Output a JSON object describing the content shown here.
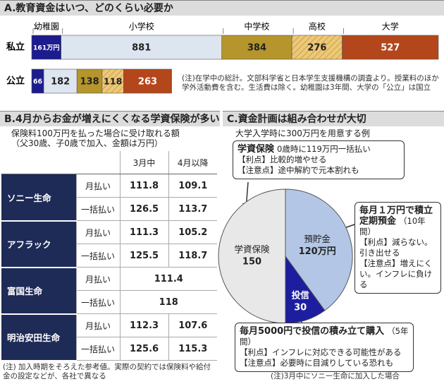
{
  "chart_data": [
    {
      "type": "stacked-bar-h",
      "title": "A.教育資金はいつ、どのくらい必要か",
      "categories": [
        "私立",
        "公立"
      ],
      "series": [
        {
          "name": "幼稚園",
          "color": "#1c1c8e",
          "values": [
            161,
            66
          ],
          "value_labels": [
            "161万円",
            "66"
          ]
        },
        {
          "name": "小学校",
          "color": "#dde5f0",
          "values": [
            881,
            182
          ]
        },
        {
          "name": "中学校",
          "color": "#b5952c",
          "values": [
            384,
            138
          ]
        },
        {
          "name": "高校",
          "color": "#ecc879",
          "pattern": "hatch",
          "values": [
            276,
            118
          ]
        },
        {
          "name": "大学",
          "color": "#b4461c",
          "values": [
            527,
            263
          ]
        }
      ],
      "note": "(注)在学中の総計。文部科学省と日本学生支援機構の調査より。授業料のほか学外活動費を含む。生活費は除く。幼稚園は3年間、大学の「公立」は国立"
    },
    {
      "type": "pie",
      "title": "C.資金計画は組み合わせが大切",
      "subtitle": "大学入学時に300万円を用意する例",
      "categories": [
        "預貯金",
        "投信",
        "学資保険"
      ],
      "values": [
        120,
        30,
        150
      ],
      "value_labels": [
        "120万円",
        "30",
        "150"
      ],
      "colors": [
        "#b3c6e6",
        "#1d1da0",
        "#e8e8e8"
      ],
      "annotations": [
        {
          "heading": "学資保険",
          "detail": "0歳時に119万円一括払い",
          "lines": [
            "【利点】比較的増やせる",
            "【注意点】途中解約で元本割れも"
          ]
        },
        {
          "heading": "毎月１万円で積立定期預金",
          "detail": "（10年間）",
          "lines": [
            "【利点】減らない。引き出せる",
            "【注意点】増えにくい。インフレに負ける"
          ]
        },
        {
          "heading": "毎月5000円で投信の積み立て購入",
          "detail": "（5年間）",
          "lines": [
            "【利点】インフレに対応できる可能性がある",
            "【注意点】必要時に目減りしている恐れも"
          ]
        }
      ],
      "note": "(注)3月中にソニー生命に加入した場合"
    }
  ],
  "section_b": {
    "title": "B.4月からお金が増えにくくなる学資保険が多い",
    "subtitle": "保険料100万円を払った場合に受け取れる額",
    "condition": "（父30歳、子0歳で加入、金額は万円）",
    "header": [
      "3月中",
      "4月以降"
    ],
    "companies": [
      {
        "name": "ソニー生命",
        "rows": [
          {
            "label": "月払い",
            "values": [
              111.8,
              109.1
            ]
          },
          {
            "label": "一括払い",
            "values": [
              126.5,
              113.7
            ]
          }
        ]
      },
      {
        "name": "アフラック",
        "rows": [
          {
            "label": "月払い",
            "values": [
              111.3,
              105.2
            ]
          },
          {
            "label": "一括払い",
            "values": [
              125.5,
              118.7
            ]
          }
        ]
      },
      {
        "name": "富国生命",
        "rows": [
          {
            "label": "月払い",
            "values": [
              111.4
            ]
          },
          {
            "label": "一括払い",
            "values": [
              118
            ]
          }
        ]
      },
      {
        "name": "明治安田生命",
        "rows": [
          {
            "label": "月払い",
            "values": [
              112.3,
              107.6
            ]
          },
          {
            "label": "一括払い",
            "values": [
              125.6,
              115.3
            ]
          }
        ]
      }
    ],
    "note": "(注) 加入時期をそろえた参考値。実際の契約では保険料や給付金の設定などが、各社で異なる"
  }
}
